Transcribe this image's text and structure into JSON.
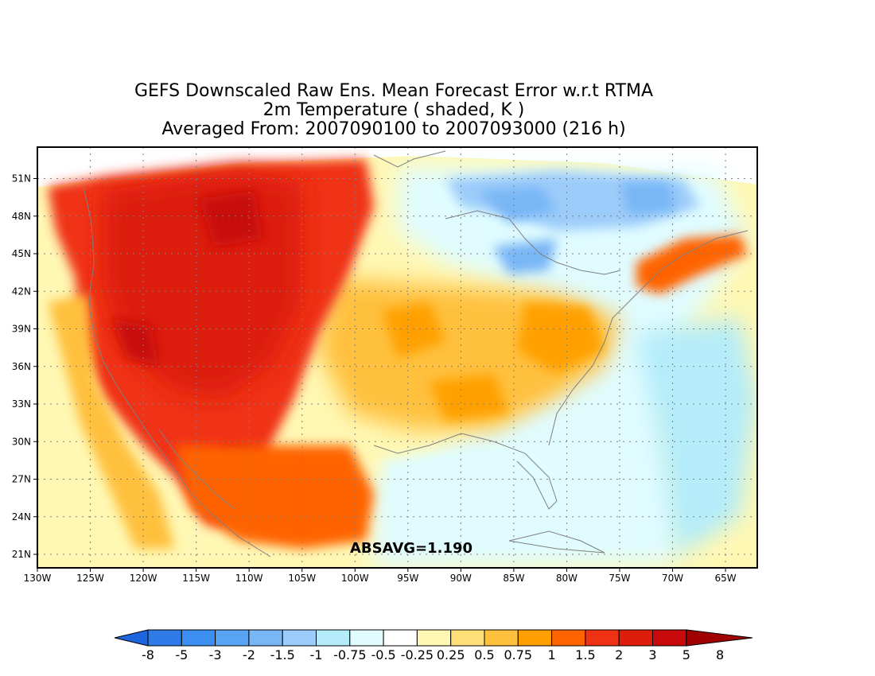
{
  "title": {
    "line1": "GEFS Downscaled Raw Ens. Mean Forecast Error w.r.t RTMA",
    "line2": "2m Temperature ( shaded, K )",
    "line3": "Averaged From: 2007090100 to 2007093000 (216 h)"
  },
  "annotation": "ABSAVG=1.190",
  "map": {
    "lat_ticks": [
      "21N",
      "24N",
      "27N",
      "30N",
      "33N",
      "36N",
      "39N",
      "42N",
      "45N",
      "48N",
      "51N"
    ],
    "lon_ticks": [
      "130W",
      "125W",
      "120W",
      "115W",
      "110W",
      "105W",
      "100W",
      "95W",
      "90W",
      "85W",
      "80W",
      "75W",
      "70W",
      "65W"
    ],
    "lat_values": [
      21,
      24,
      27,
      30,
      33,
      36,
      39,
      42,
      45,
      48,
      51
    ],
    "lon_values": [
      -130,
      -125,
      -120,
      -115,
      -110,
      -105,
      -100,
      -95,
      -90,
      -85,
      -80,
      -75,
      -70,
      -65
    ],
    "lon_range": [
      -130,
      -62
    ],
    "lat_range": [
      20,
      53
    ],
    "grid": "dotted"
  },
  "colorbar": {
    "labels": [
      "-8",
      "-5",
      "-3",
      "-2",
      "-1.5",
      "-1",
      "-0.75",
      "-0.5",
      "-0.25",
      "0.25",
      "0.5",
      "0.75",
      "1",
      "1.5",
      "2",
      "3",
      "5",
      "8"
    ],
    "colors": [
      "#1e64dc",
      "#2e7ae6",
      "#3c8ff0",
      "#58a4f4",
      "#78b6f6",
      "#9cccfa",
      "#b4ecfa",
      "#e0fcff",
      "#ffffff",
      "#fff8b4",
      "#ffe078",
      "#ffc03c",
      "#ffa000",
      "#ff6400",
      "#f03214",
      "#dc1e0a",
      "#c80a0a",
      "#a00000"
    ]
  },
  "regions": [
    {
      "name": "west-hot",
      "color": "#dc1e0a"
    },
    {
      "name": "west-core",
      "color": "#c80a0a"
    },
    {
      "name": "plains-warm",
      "color": "#ffa000"
    },
    {
      "name": "east-cool",
      "color": "#b4ecfa"
    },
    {
      "name": "lakes-cold",
      "color": "#78b6f6"
    },
    {
      "name": "gulf-cool",
      "color": "#e0fcff"
    }
  ]
}
